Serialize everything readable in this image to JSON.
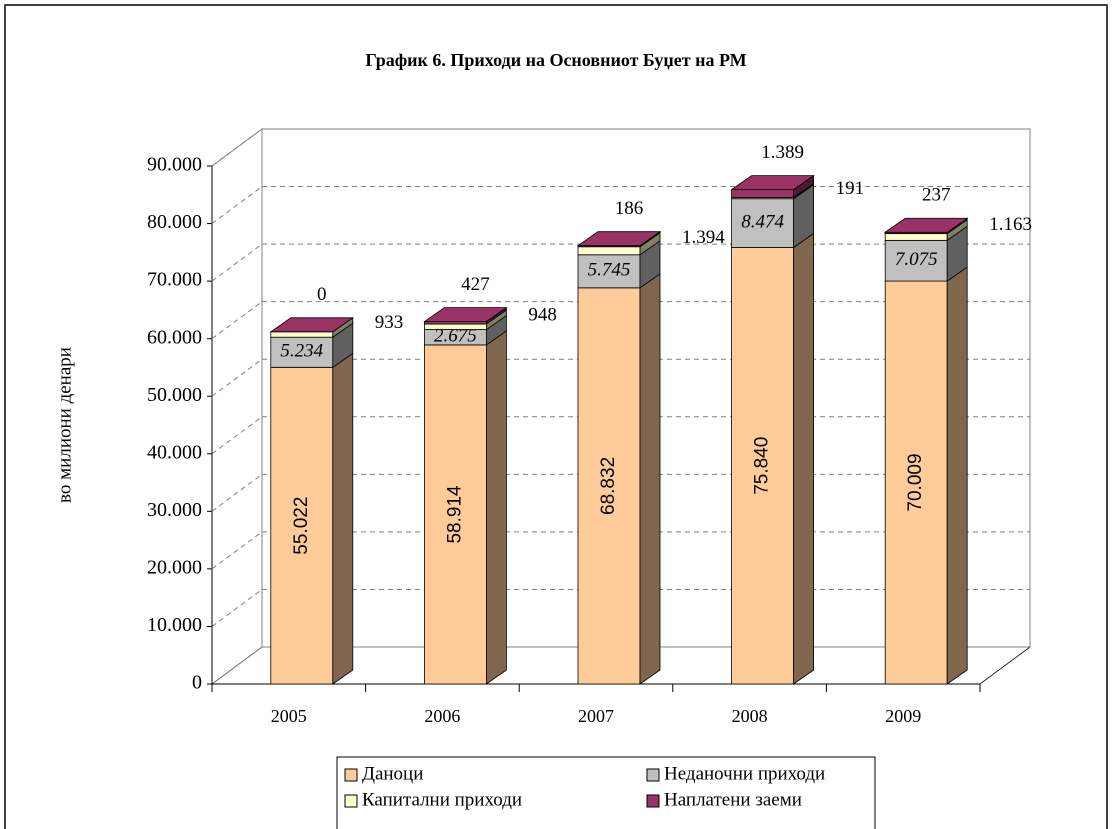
{
  "chart_data": {
    "type": "bar3d_stacked",
    "title": "График 6. Приходи на Основниот Буџет на РМ",
    "y_label": "во милиони денари",
    "categories": [
      "2005",
      "2006",
      "2007",
      "2008",
      "2009"
    ],
    "series": [
      {
        "name": "Даноци",
        "color": "#ffcc99",
        "values": [
          55022,
          58914,
          68832,
          75840,
          70009
        ],
        "value_labels": [
          "55.022",
          "58.914",
          "68.832",
          "75.840",
          "70.009"
        ]
      },
      {
        "name": "Неданочни приходи",
        "color": "#c0c0c0",
        "values": [
          5234,
          2675,
          5745,
          8474,
          7075
        ],
        "value_labels": [
          "5.234",
          "2.675",
          "5.745",
          "8.474",
          "7.075"
        ]
      },
      {
        "name": "Капитални приходи",
        "color": "#ffffcc",
        "values": [
          933,
          948,
          1394,
          191,
          1163
        ],
        "value_labels": [
          "933",
          "948",
          "1.394",
          "191",
          "1.163"
        ]
      },
      {
        "name": "Наплатени заеми",
        "color": "#993366",
        "values": [
          0,
          427,
          186,
          1389,
          237
        ],
        "value_labels": [
          "0",
          "427",
          "186",
          "1.389",
          "237"
        ]
      }
    ],
    "ylim": [
      0,
      90000
    ],
    "yticks": [
      0,
      {
        "value": 10000,
        "label": "10.000"
      },
      {
        "value": 20000,
        "label": "20.000"
      },
      {
        "value": 30000,
        "label": "30.000"
      },
      {
        "value": 40000,
        "label": "40.000"
      },
      {
        "value": 50000,
        "label": "50.000"
      },
      {
        "value": 60000,
        "label": "60.000"
      },
      {
        "value": 70000,
        "label": "70.000"
      },
      {
        "value": 80000,
        "label": "80.000"
      },
      {
        "value": 90000,
        "label": "90.000"
      }
    ],
    "grid": true
  }
}
